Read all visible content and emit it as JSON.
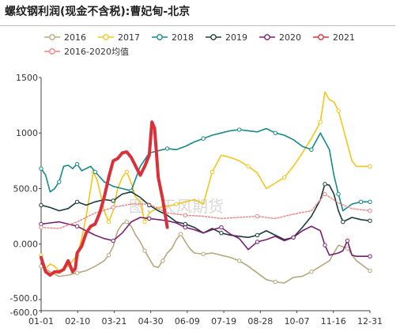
{
  "title": "螺纹钢利润(现金不含税):曹妃甸-北京",
  "watermark": "图：天风期货",
  "chart_data": {
    "type": "line",
    "xlabel": "",
    "ylabel": "",
    "x_ticks": [
      "01-01",
      "02-10",
      "03-21",
      "04-30",
      "06-09",
      "07-19",
      "08-28",
      "10-07",
      "11-16",
      "12-31"
    ],
    "y_ticks": [
      "1500",
      "1000",
      "500.0",
      "0.000",
      "-500.0",
      "-600.0"
    ],
    "y_tick_values": [
      1500,
      1000,
      500,
      0,
      -500,
      -600
    ],
    "ylim": [
      -600,
      1500
    ],
    "grid": false,
    "legend_position": "top",
    "series": [
      {
        "name": "2016",
        "color": "#b8a77a",
        "width": 1.6,
        "points": [
          [
            0,
            -200
          ],
          [
            10,
            -250
          ],
          [
            20,
            -290
          ],
          [
            30,
            -280
          ],
          [
            40,
            -260
          ],
          [
            50,
            -240
          ],
          [
            60,
            -200
          ],
          [
            70,
            -150
          ],
          [
            75,
            -100
          ],
          [
            80,
            -20
          ],
          [
            85,
            120
          ],
          [
            90,
            180
          ],
          [
            95,
            200
          ],
          [
            100,
            160
          ],
          [
            105,
            80
          ],
          [
            110,
            20
          ],
          [
            115,
            -60
          ],
          [
            120,
            -130
          ],
          [
            125,
            -200
          ],
          [
            130,
            -210
          ],
          [
            135,
            -150
          ],
          [
            140,
            -80
          ],
          [
            145,
            -40
          ],
          [
            150,
            40
          ],
          [
            155,
            90
          ],
          [
            160,
            20
          ],
          [
            165,
            -40
          ],
          [
            170,
            -80
          ],
          [
            180,
            -90
          ],
          [
            190,
            -80
          ],
          [
            200,
            -100
          ],
          [
            210,
            -120
          ],
          [
            220,
            -150
          ],
          [
            230,
            -200
          ],
          [
            240,
            -260
          ],
          [
            250,
            -320
          ],
          [
            260,
            -340
          ],
          [
            270,
            -350
          ],
          [
            280,
            -300
          ],
          [
            290,
            -290
          ],
          [
            300,
            -250
          ],
          [
            310,
            -200
          ],
          [
            320,
            -150
          ],
          [
            330,
            -10
          ],
          [
            340,
            -40
          ],
          [
            350,
            -150
          ],
          [
            365,
            -240
          ]
        ]
      },
      {
        "name": "2017",
        "color": "#f5c518",
        "width": 1.6,
        "points": [
          [
            0,
            -100
          ],
          [
            5,
            -220
          ],
          [
            10,
            -180
          ],
          [
            15,
            -200
          ],
          [
            20,
            -250
          ],
          [
            25,
            -220
          ],
          [
            30,
            -200
          ],
          [
            35,
            -150
          ],
          [
            40,
            -100
          ],
          [
            45,
            50
          ],
          [
            50,
            250
          ],
          [
            55,
            500
          ],
          [
            58,
            650
          ],
          [
            62,
            580
          ],
          [
            66,
            450
          ],
          [
            70,
            300
          ],
          [
            75,
            200
          ],
          [
            80,
            300
          ],
          [
            85,
            500
          ],
          [
            90,
            600
          ],
          [
            95,
            650
          ],
          [
            100,
            550
          ],
          [
            105,
            420
          ],
          [
            110,
            380
          ],
          [
            115,
            200
          ],
          [
            120,
            280
          ],
          [
            130,
            330
          ],
          [
            140,
            340
          ],
          [
            150,
            360
          ],
          [
            160,
            380
          ],
          [
            170,
            400
          ],
          [
            180,
            360
          ],
          [
            190,
            650
          ],
          [
            200,
            800
          ],
          [
            210,
            780
          ],
          [
            220,
            750
          ],
          [
            230,
            700
          ],
          [
            240,
            640
          ],
          [
            250,
            500
          ],
          [
            260,
            550
          ],
          [
            270,
            600
          ],
          [
            280,
            700
          ],
          [
            290,
            820
          ],
          [
            300,
            950
          ],
          [
            310,
            1100
          ],
          [
            315,
            1370
          ],
          [
            320,
            1300
          ],
          [
            325,
            1280
          ],
          [
            330,
            1200
          ],
          [
            340,
            900
          ],
          [
            345,
            750
          ],
          [
            350,
            700
          ],
          [
            365,
            700
          ]
        ]
      },
      {
        "name": "2018",
        "color": "#148a89",
        "width": 1.6,
        "points": [
          [
            0,
            680
          ],
          [
            5,
            620
          ],
          [
            10,
            470
          ],
          [
            15,
            500
          ],
          [
            20,
            560
          ],
          [
            25,
            700
          ],
          [
            30,
            710
          ],
          [
            35,
            680
          ],
          [
            40,
            720
          ],
          [
            45,
            660
          ],
          [
            50,
            680
          ],
          [
            55,
            700
          ],
          [
            60,
            650
          ],
          [
            70,
            560
          ],
          [
            80,
            520
          ],
          [
            90,
            500
          ],
          [
            100,
            480
          ],
          [
            110,
            700
          ],
          [
            120,
            820
          ],
          [
            130,
            840
          ],
          [
            140,
            860
          ],
          [
            150,
            850
          ],
          [
            160,
            880
          ],
          [
            170,
            920
          ],
          [
            180,
            950
          ],
          [
            190,
            980
          ],
          [
            200,
            1000
          ],
          [
            210,
            1020
          ],
          [
            220,
            1030
          ],
          [
            230,
            1020
          ],
          [
            240,
            1010
          ],
          [
            250,
            1040
          ],
          [
            260,
            1000
          ],
          [
            270,
            980
          ],
          [
            280,
            940
          ],
          [
            290,
            880
          ],
          [
            300,
            850
          ],
          [
            310,
            1000
          ],
          [
            320,
            850
          ],
          [
            325,
            620
          ],
          [
            330,
            450
          ],
          [
            335,
            300
          ],
          [
            340,
            330
          ],
          [
            345,
            360
          ],
          [
            355,
            380
          ],
          [
            365,
            380
          ]
        ]
      },
      {
        "name": "2019",
        "color": "#1c3b3c",
        "width": 1.6,
        "points": [
          [
            0,
            350
          ],
          [
            10,
            330
          ],
          [
            20,
            300
          ],
          [
            30,
            320
          ],
          [
            40,
            380
          ],
          [
            50,
            350
          ],
          [
            60,
            380
          ],
          [
            70,
            400
          ],
          [
            80,
            390
          ],
          [
            90,
            450
          ],
          [
            100,
            470
          ],
          [
            110,
            420
          ],
          [
            120,
            350
          ],
          [
            130,
            300
          ],
          [
            140,
            260
          ],
          [
            150,
            200
          ],
          [
            160,
            180
          ],
          [
            170,
            150
          ],
          [
            180,
            100
          ],
          [
            190,
            140
          ],
          [
            200,
            100
          ],
          [
            210,
            80
          ],
          [
            220,
            70
          ],
          [
            230,
            60
          ],
          [
            240,
            80
          ],
          [
            250,
            120
          ],
          [
            260,
            80
          ],
          [
            270,
            40
          ],
          [
            280,
            60
          ],
          [
            290,
            150
          ],
          [
            300,
            250
          ],
          [
            310,
            400
          ],
          [
            315,
            540
          ],
          [
            320,
            530
          ],
          [
            325,
            450
          ],
          [
            330,
            300
          ],
          [
            335,
            200
          ],
          [
            345,
            240
          ],
          [
            355,
            220
          ],
          [
            365,
            210
          ]
        ]
      },
      {
        "name": "2020",
        "color": "#7b1f72",
        "width": 1.6,
        "points": [
          [
            0,
            180
          ],
          [
            10,
            190
          ],
          [
            20,
            200
          ],
          [
            30,
            180
          ],
          [
            40,
            160
          ],
          [
            50,
            120
          ],
          [
            60,
            80
          ],
          [
            70,
            50
          ],
          [
            80,
            30
          ],
          [
            90,
            100
          ],
          [
            100,
            200
          ],
          [
            110,
            240
          ],
          [
            120,
            230
          ],
          [
            130,
            220
          ],
          [
            140,
            210
          ],
          [
            150,
            190
          ],
          [
            160,
            150
          ],
          [
            170,
            130
          ],
          [
            180,
            100
          ],
          [
            190,
            130
          ],
          [
            200,
            150
          ],
          [
            210,
            90
          ],
          [
            220,
            50
          ],
          [
            230,
            -50
          ],
          [
            240,
            20
          ],
          [
            250,
            40
          ],
          [
            260,
            70
          ],
          [
            270,
            30
          ],
          [
            280,
            60
          ],
          [
            290,
            120
          ],
          [
            300,
            160
          ],
          [
            310,
            120
          ],
          [
            315,
            -10
          ],
          [
            320,
            -100
          ],
          [
            330,
            -80
          ],
          [
            335,
            -60
          ],
          [
            340,
            30
          ],
          [
            345,
            -100
          ],
          [
            350,
            -110
          ],
          [
            365,
            -110
          ]
        ]
      },
      {
        "name": "2021",
        "color": "#d9303a",
        "width": 4,
        "points": [
          [
            0,
            -120
          ],
          [
            5,
            -250
          ],
          [
            10,
            -280
          ],
          [
            15,
            -250
          ],
          [
            20,
            -250
          ],
          [
            25,
            -230
          ],
          [
            30,
            -150
          ],
          [
            35,
            -250
          ],
          [
            38,
            -220
          ],
          [
            40,
            -80
          ],
          [
            45,
            -20
          ],
          [
            50,
            100
          ],
          [
            55,
            160
          ],
          [
            60,
            180
          ],
          [
            65,
            280
          ],
          [
            70,
            420
          ],
          [
            75,
            600
          ],
          [
            80,
            750
          ],
          [
            85,
            770
          ],
          [
            90,
            820
          ],
          [
            95,
            830
          ],
          [
            100,
            780
          ],
          [
            105,
            700
          ],
          [
            110,
            620
          ],
          [
            115,
            700
          ],
          [
            120,
            800
          ],
          [
            123,
            1100
          ],
          [
            126,
            1040
          ],
          [
            130,
            600
          ],
          [
            135,
            400
          ],
          [
            140,
            150
          ]
        ]
      },
      {
        "name": "2016-2020均值",
        "color": "#f08080",
        "width": 1.4,
        "dashed": true,
        "points": [
          [
            0,
            150
          ],
          [
            20,
            140
          ],
          [
            40,
            200
          ],
          [
            60,
            280
          ],
          [
            80,
            330
          ],
          [
            100,
            360
          ],
          [
            120,
            360
          ],
          [
            140,
            280
          ],
          [
            160,
            260
          ],
          [
            180,
            250
          ],
          [
            200,
            230
          ],
          [
            220,
            240
          ],
          [
            240,
            250
          ],
          [
            260,
            230
          ],
          [
            280,
            270
          ],
          [
            300,
            300
          ],
          [
            315,
            450
          ],
          [
            330,
            370
          ],
          [
            345,
            320
          ],
          [
            365,
            300
          ]
        ]
      }
    ]
  }
}
